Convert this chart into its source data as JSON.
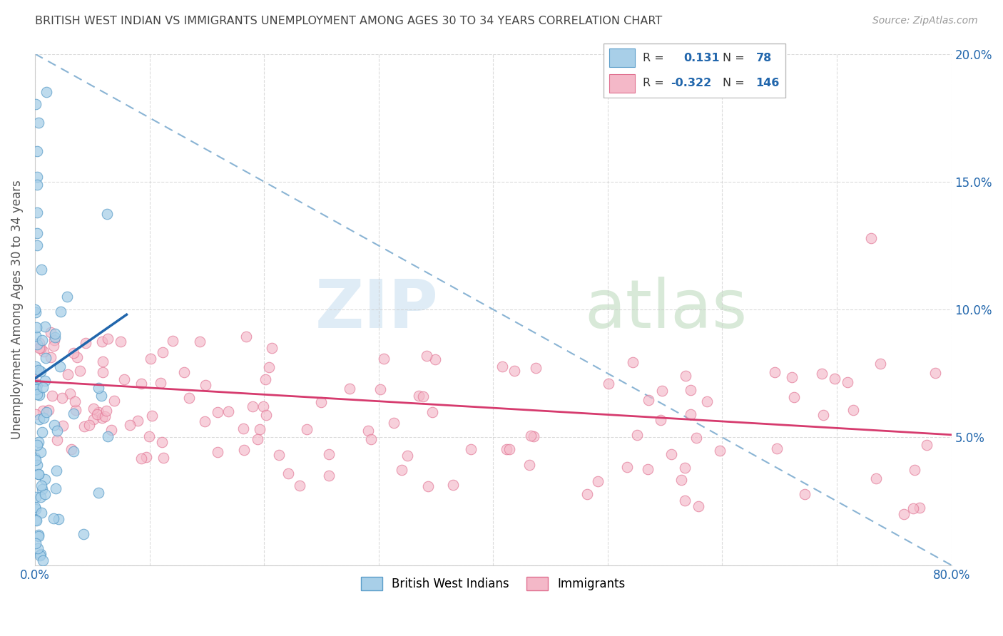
{
  "title": "BRITISH WEST INDIAN VS IMMIGRANTS UNEMPLOYMENT AMONG AGES 30 TO 34 YEARS CORRELATION CHART",
  "source": "Source: ZipAtlas.com",
  "ylabel": "Unemployment Among Ages 30 to 34 years",
  "xlim": [
    0.0,
    0.8
  ],
  "ylim": [
    0.0,
    0.2
  ],
  "color_blue": "#a8cfe8",
  "color_blue_edge": "#5b9dc9",
  "color_pink": "#f4b8c8",
  "color_pink_edge": "#e07090",
  "color_line_blue": "#2166ac",
  "color_line_pink": "#d63b6e",
  "color_dash": "#8ab4d4",
  "color_grid": "#cccccc",
  "background_color": "#ffffff",
  "R1": 0.131,
  "N1": 78,
  "R2": -0.322,
  "N2": 146,
  "watermark_zip_color": "#cce0f0",
  "watermark_atlas_color": "#c8e0c8",
  "legend_border_color": "#bbbbbb",
  "tick_color": "#2166ac",
  "title_color": "#444444",
  "source_color": "#999999",
  "ylabel_color": "#555555"
}
